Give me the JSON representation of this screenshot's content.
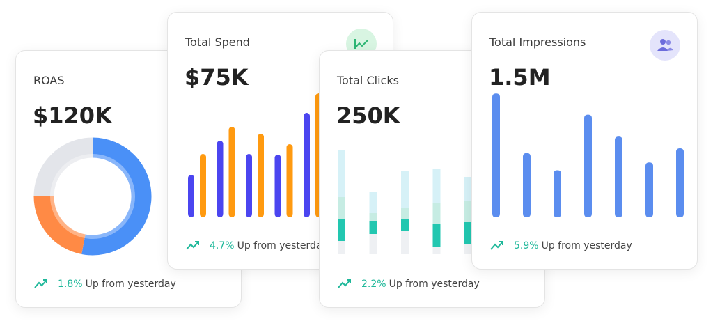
{
  "cards": [
    {
      "title": "ROAS",
      "value": "$120K",
      "change": "1.8%",
      "change_text": "Up from yesterday",
      "chart": {
        "type": "donut",
        "values": [
          53,
          22,
          25
        ],
        "colors": [
          "#4a90f7",
          "#ff8a45",
          "#e3e5ea"
        ]
      }
    },
    {
      "title": "Total Spend",
      "value": "$75K",
      "change": "4.7%",
      "change_text": "Up from yesterday",
      "chart": {
        "type": "bar",
        "ylim": [
          0,
          180
        ],
        "series": [
          {
            "color": "#4b45f0",
            "values": [
              61,
              110,
              91,
              90,
              150
            ]
          },
          {
            "color": "#ff9a10",
            "values": [
              91,
              130,
              120,
              105,
              178
            ]
          }
        ]
      }
    },
    {
      "title": "Total Clicks",
      "value": "250K",
      "change": "2.2%",
      "change_text": "Up from yesterday",
      "chart": {
        "type": "stacked-bar",
        "ylim": [
          0,
          150
        ],
        "series": [
          {
            "color": "#eef0f3",
            "values": [
              19,
              29,
              34,
              11,
              14
            ]
          },
          {
            "color": "#22c7b0",
            "values": [
              32,
              19,
              16,
              32,
              32
            ]
          },
          {
            "color": "#c6ece3",
            "values": [
              31,
              11,
              16,
              31,
              30
            ]
          },
          {
            "color": "#d6f1f7",
            "values": [
              67,
              30,
              53,
              49,
              35
            ]
          }
        ]
      }
    },
    {
      "title": "Total Impressions",
      "value": "1.5M",
      "change": "5.9%",
      "change_text": "Up from yesterday",
      "chart": {
        "type": "bar",
        "ylim": [
          0,
          160
        ],
        "series": [
          {
            "color": "#5b8def",
            "values": [
              158,
              82,
              60,
              131,
              103,
              70,
              88
            ]
          }
        ]
      }
    }
  ]
}
